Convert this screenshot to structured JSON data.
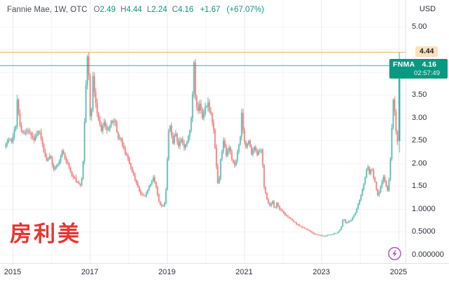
{
  "header": {
    "symbol_title": "Fannie Mae, 1W, OTC",
    "ohlc": [
      {
        "label": "O",
        "value": "2.49"
      },
      {
        "label": "H",
        "value": "4.44"
      },
      {
        "label": "L",
        "value": "2.24"
      },
      {
        "label": "C",
        "value": "4.16"
      }
    ],
    "change": "+1.67",
    "change_pct": "(+67.07%)"
  },
  "price_axis": {
    "currency": "USD",
    "ticks": [
      {
        "label": "5.00",
        "price": 5.0
      },
      {
        "label": "3.50",
        "price": 3.5
      },
      {
        "label": "3.00",
        "price": 3.0
      },
      {
        "label": "2.50",
        "price": 2.5
      },
      {
        "label": "2.00",
        "price": 2.0
      },
      {
        "label": "1.50",
        "price": 1.5
      },
      {
        "label": "1.0000",
        "price": 1.0
      },
      {
        "label": "0.5000",
        "price": 0.5
      },
      {
        "label": "0.000000",
        "price": 0.0
      }
    ],
    "alert_label": {
      "text": "4.44",
      "price": 4.44
    },
    "price_badge": {
      "symbol": "FNMA",
      "price_text": "4.16",
      "price": 4.16,
      "countdown": "02:57:49"
    }
  },
  "time_axis": {
    "labels": [
      {
        "text": "2015",
        "year": 2015
      },
      {
        "text": "2017",
        "year": 2017
      },
      {
        "text": "2019",
        "year": 2019
      },
      {
        "text": "2021",
        "year": 2021
      },
      {
        "text": "2023",
        "year": 2023
      },
      {
        "text": "2025",
        "year": 2025
      }
    ]
  },
  "overlay": {
    "watermark_cn": "房利美"
  },
  "icons": {
    "lightning": "realtime-lightning-icon"
  },
  "colors": {
    "up": "#26a69a",
    "down": "#ef5350",
    "accent_teal": "#089981",
    "alert_orange_line": "#f5a95c",
    "alert_badge_bg": "#fbe0ba",
    "watermark_red": "#e53530",
    "lightning_purple": "#b05cc1",
    "grid_major": "#e8eaef",
    "grid_minor": "#f3f4f8",
    "axis_text": "#2a2e39"
  },
  "chart_data": {
    "type": "candlestick",
    "title": "Fannie Mae, 1W, OTC",
    "interval": "1W",
    "symbol": "FNMA",
    "currency": "USD",
    "x_domain_years": [
      2014.8,
      2025.2
    ],
    "y_domain": [
      0.0,
      5.2
    ],
    "grid": "on",
    "price_line": 4.16,
    "alert_line": 4.44,
    "last_candle": {
      "open": 2.49,
      "high": 4.44,
      "low": 2.24,
      "close": 4.16
    },
    "anchors_year_price": [
      [
        2014.82,
        2.35
      ],
      [
        2014.93,
        2.55
      ],
      [
        2015.0,
        2.45
      ],
      [
        2015.11,
        2.85
      ],
      [
        2015.15,
        3.45
      ],
      [
        2015.2,
        2.9
      ],
      [
        2015.31,
        2.6
      ],
      [
        2015.44,
        2.75
      ],
      [
        2015.58,
        2.5
      ],
      [
        2015.71,
        2.72
      ],
      [
        2015.82,
        2.3
      ],
      [
        2015.91,
        2.05
      ],
      [
        2016.0,
        2.2
      ],
      [
        2016.09,
        1.85
      ],
      [
        2016.22,
        2.0
      ],
      [
        2016.31,
        2.3
      ],
      [
        2016.44,
        2.0
      ],
      [
        2016.56,
        1.75
      ],
      [
        2016.67,
        1.62
      ],
      [
        2016.78,
        1.55
      ],
      [
        2016.84,
        1.7
      ],
      [
        2016.87,
        2.4
      ],
      [
        2016.91,
        3.3
      ],
      [
        2016.95,
        4.2
      ],
      [
        2016.98,
        4.45
      ],
      [
        2017.02,
        3.4
      ],
      [
        2017.05,
        2.75
      ],
      [
        2017.11,
        3.9
      ],
      [
        2017.16,
        3.5
      ],
      [
        2017.24,
        3.0
      ],
      [
        2017.33,
        2.7
      ],
      [
        2017.4,
        2.9
      ],
      [
        2017.49,
        2.65
      ],
      [
        2017.58,
        2.9
      ],
      [
        2017.67,
        2.95
      ],
      [
        2017.76,
        2.6
      ],
      [
        2017.85,
        2.45
      ],
      [
        2017.95,
        2.2
      ],
      [
        2018.04,
        2.05
      ],
      [
        2018.13,
        1.8
      ],
      [
        2018.24,
        1.55
      ],
      [
        2018.33,
        1.35
      ],
      [
        2018.44,
        1.28
      ],
      [
        2018.53,
        1.42
      ],
      [
        2018.62,
        1.55
      ],
      [
        2018.67,
        1.72
      ],
      [
        2018.75,
        1.45
      ],
      [
        2018.82,
        1.15
      ],
      [
        2018.91,
        1.05
      ],
      [
        2018.96,
        1.1
      ],
      [
        2019.02,
        1.55
      ],
      [
        2019.05,
        2.6
      ],
      [
        2019.11,
        2.85
      ],
      [
        2019.18,
        2.45
      ],
      [
        2019.25,
        2.65
      ],
      [
        2019.33,
        2.4
      ],
      [
        2019.4,
        2.55
      ],
      [
        2019.47,
        2.3
      ],
      [
        2019.55,
        2.5
      ],
      [
        2019.62,
        2.75
      ],
      [
        2019.67,
        3.1
      ],
      [
        2019.73,
        4.2
      ],
      [
        2019.76,
        3.5
      ],
      [
        2019.82,
        3.1
      ],
      [
        2019.87,
        3.35
      ],
      [
        2019.95,
        2.95
      ],
      [
        2020.02,
        3.2
      ],
      [
        2020.09,
        3.3
      ],
      [
        2020.16,
        3.1
      ],
      [
        2020.24,
        2.7
      ],
      [
        2020.31,
        1.9
      ],
      [
        2020.36,
        1.45
      ],
      [
        2020.42,
        2.1
      ],
      [
        2020.49,
        2.5
      ],
      [
        2020.56,
        2.2
      ],
      [
        2020.64,
        2.35
      ],
      [
        2020.71,
        2.1
      ],
      [
        2020.78,
        1.95
      ],
      [
        2020.85,
        2.2
      ],
      [
        2020.93,
        2.6
      ],
      [
        2020.96,
        3.1
      ],
      [
        2021.02,
        2.55
      ],
      [
        2021.07,
        2.35
      ],
      [
        2021.15,
        2.5
      ],
      [
        2021.22,
        2.2
      ],
      [
        2021.29,
        2.35
      ],
      [
        2021.36,
        2.2
      ],
      [
        2021.44,
        2.3
      ],
      [
        2021.49,
        2.3
      ],
      [
        2021.53,
        1.55
      ],
      [
        2021.58,
        1.35
      ],
      [
        2021.64,
        1.15
      ],
      [
        2021.69,
        1.05
      ],
      [
        2021.76,
        1.2
      ],
      [
        2021.82,
        0.95
      ],
      [
        2021.87,
        1.15
      ],
      [
        2021.95,
        1.0
      ],
      [
        2022.0,
        0.95
      ],
      [
        2022.09,
        0.88
      ],
      [
        2022.2,
        0.8
      ],
      [
        2022.31,
        0.72
      ],
      [
        2022.42,
        0.65
      ],
      [
        2022.53,
        0.6
      ],
      [
        2022.64,
        0.55
      ],
      [
        2022.75,
        0.5
      ],
      [
        2022.85,
        0.45
      ],
      [
        2023.0,
        0.42
      ],
      [
        2023.11,
        0.4
      ],
      [
        2023.22,
        0.43
      ],
      [
        2023.33,
        0.45
      ],
      [
        2023.44,
        0.48
      ],
      [
        2023.53,
        0.55
      ],
      [
        2023.6,
        0.82
      ],
      [
        2023.65,
        0.68
      ],
      [
        2023.75,
        0.72
      ],
      [
        2023.84,
        0.8
      ],
      [
        2023.93,
        0.95
      ],
      [
        2024.0,
        1.15
      ],
      [
        2024.07,
        1.35
      ],
      [
        2024.15,
        1.6
      ],
      [
        2024.22,
        2.0
      ],
      [
        2024.27,
        1.75
      ],
      [
        2024.33,
        1.9
      ],
      [
        2024.38,
        1.7
      ],
      [
        2024.44,
        1.5
      ],
      [
        2024.49,
        1.3
      ],
      [
        2024.56,
        1.45
      ],
      [
        2024.64,
        1.7
      ],
      [
        2024.69,
        1.55
      ],
      [
        2024.75,
        1.4
      ],
      [
        2024.78,
        1.6
      ],
      [
        2024.82,
        2.1
      ],
      [
        2024.85,
        2.7
      ],
      [
        2024.89,
        3.4
      ],
      [
        2024.91,
        3.6
      ],
      [
        2024.93,
        3.1
      ],
      [
        2024.96,
        2.7
      ],
      [
        2024.98,
        2.5
      ]
    ]
  }
}
